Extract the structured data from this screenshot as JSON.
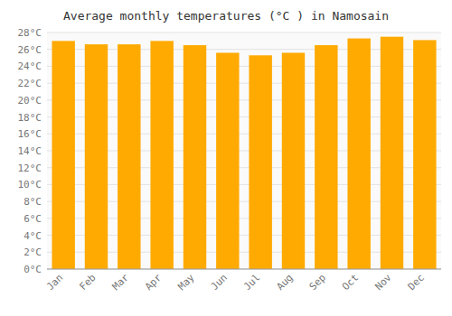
{
  "chart_data": {
    "type": "bar",
    "title": "Average monthly temperatures (°C ) in Namosain",
    "categories": [
      "Jan",
      "Feb",
      "Mar",
      "Apr",
      "May",
      "Jun",
      "Jul",
      "Aug",
      "Sep",
      "Oct",
      "Nov",
      "Dec"
    ],
    "values": [
      27.0,
      26.6,
      26.6,
      27.0,
      26.5,
      25.6,
      25.3,
      25.6,
      26.5,
      27.3,
      27.5,
      27.1
    ],
    "color": "#FFAA00",
    "ylim": [
      0,
      28
    ],
    "yticks": [
      {
        "value": 0,
        "label": "0°C"
      },
      {
        "value": 2,
        "label": "2°C"
      },
      {
        "value": 4,
        "label": "4°C"
      },
      {
        "value": 6,
        "label": "6°C"
      },
      {
        "value": 8,
        "label": "8°C"
      },
      {
        "value": 10,
        "label": "10°C"
      },
      {
        "value": 12,
        "label": "12°C"
      },
      {
        "value": 14,
        "label": "14°C"
      },
      {
        "value": 16,
        "label": "16°C"
      },
      {
        "value": 18,
        "label": "18°C"
      },
      {
        "value": 20,
        "label": "20°C"
      },
      {
        "value": 22,
        "label": "22°C"
      },
      {
        "value": 24,
        "label": "24°C"
      },
      {
        "value": 26,
        "label": "26°C"
      },
      {
        "value": 28,
        "label": "28°C"
      }
    ],
    "grid": true
  }
}
